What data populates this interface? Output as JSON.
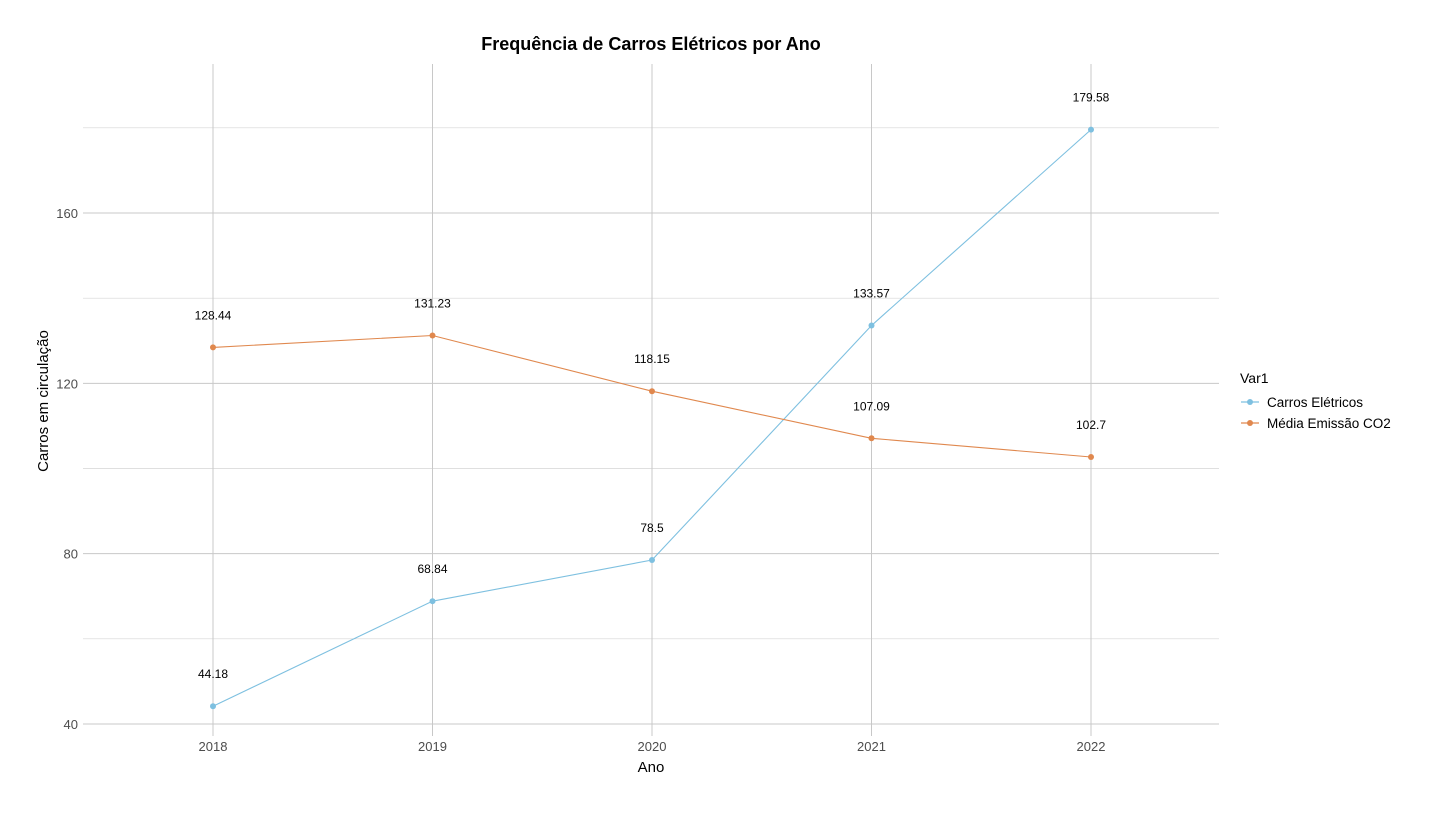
{
  "chart_data": {
    "type": "line",
    "title": "Frequência de Carros Elétricos por Ano",
    "xlabel": "Ano",
    "ylabel": "Carros em circulação",
    "categories": [
      "2018",
      "2019",
      "2020",
      "2021",
      "2022"
    ],
    "y_ticks": [
      40,
      80,
      120,
      160
    ],
    "ylim": [
      40,
      182
    ],
    "grid": true,
    "legend": {
      "title": "Var1",
      "placement": "right"
    },
    "series": [
      {
        "name": "Carros Elétricos",
        "color": "#7ec0e0",
        "values": [
          44.18,
          68.84,
          78.5,
          133.57,
          179.58
        ],
        "labels": [
          "44.18",
          "68.84",
          "78.5",
          "133.57",
          "179.58"
        ]
      },
      {
        "name": "Média Emissão CO2",
        "color": "#e0884e",
        "values": [
          128.44,
          131.23,
          118.15,
          107.09,
          102.7
        ],
        "labels": [
          "128.44",
          "131.23",
          "118.15",
          "107.09",
          "102.7"
        ]
      }
    ]
  }
}
